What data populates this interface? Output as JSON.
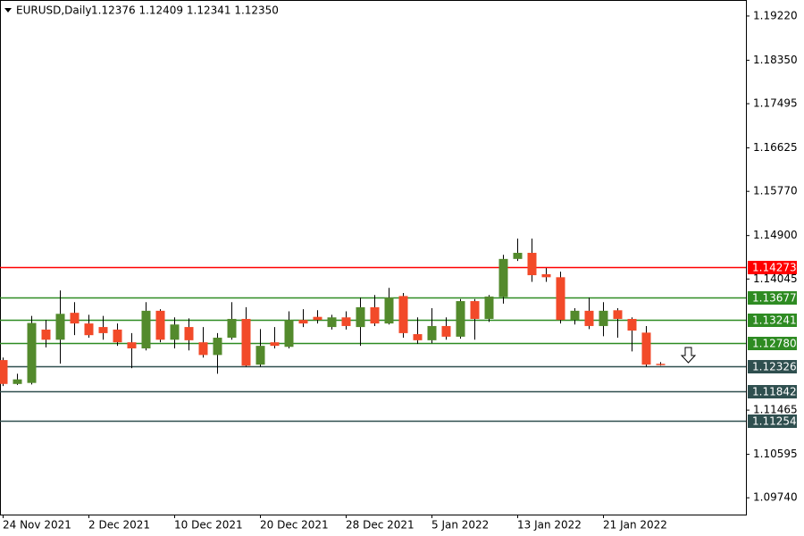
{
  "chart_data": {
    "type": "candlestick",
    "title": "EURUSD,Daily",
    "subtitle": "1.12376 1.12409 1.12341 1.12350",
    "categories": [
      "24 Nov 2021",
      null,
      null,
      null,
      null,
      null,
      "2 Dec 2021",
      null,
      null,
      null,
      null,
      null,
      "10 Dec 2021",
      null,
      null,
      null,
      null,
      null,
      "20 Dec 2021",
      null,
      null,
      null,
      null,
      null,
      "28 Dec 2021",
      null,
      null,
      null,
      null,
      null,
      "5 Jan 2022",
      null,
      null,
      null,
      null,
      null,
      "13 Jan 2022",
      null,
      null,
      null,
      null,
      null,
      "21 Jan 2022",
      null,
      null,
      null,
      null
    ],
    "open": [
      1.1245,
      1.1198,
      1.12,
      1.1305,
      1.1285,
      1.1338,
      1.1317,
      1.131,
      1.1305,
      1.128,
      1.1268,
      1.1342,
      1.1285,
      1.131,
      1.128,
      1.1255,
      1.1289,
      1.1326,
      1.1236,
      1.128,
      1.1271,
      1.1324,
      1.133,
      1.131,
      1.1329,
      1.131,
      1.1349,
      1.1317,
      1.1371,
      1.1296,
      1.1284,
      1.1312,
      1.1291,
      1.1361,
      1.1326,
      1.1369,
      1.1444,
      1.1456,
      1.1414,
      1.1408,
      1.1324,
      1.1342,
      1.1312,
      1.1343,
      1.1326,
      1.1299,
      1.12376
    ],
    "high": [
      1.125,
      1.1218,
      1.1332,
      1.1324,
      1.1382,
      1.1359,
      1.1334,
      1.1332,
      1.1317,
      1.1298,
      1.1359,
      1.1345,
      1.1329,
      1.1327,
      1.131,
      1.1298,
      1.1359,
      1.1349,
      1.1306,
      1.131,
      1.1341,
      1.1345,
      1.1343,
      1.1334,
      1.1341,
      1.1368,
      1.1373,
      1.1387,
      1.1377,
      1.1329,
      1.1347,
      1.1329,
      1.1365,
      1.1365,
      1.1373,
      1.1452,
      1.1484,
      1.1484,
      1.1426,
      1.1419,
      1.1347,
      1.1368,
      1.1359,
      1.1347,
      1.1329,
      1.1312,
      1.12409
    ],
    "low": [
      1.1194,
      1.1196,
      1.1197,
      1.127,
      1.1238,
      1.1294,
      1.1289,
      1.1285,
      1.1273,
      1.1229,
      1.1264,
      1.128,
      1.1268,
      1.1264,
      1.125,
      1.1218,
      1.1285,
      1.1232,
      1.1232,
      1.1268,
      1.1268,
      1.131,
      1.1317,
      1.1305,
      1.1305,
      1.1273,
      1.1312,
      1.1315,
      1.1289,
      1.1277,
      1.1278,
      1.1285,
      1.1287,
      1.1285,
      1.132,
      1.1356,
      1.144,
      1.1399,
      1.1399,
      1.1317,
      1.1315,
      1.1306,
      1.1292,
      1.1289,
      1.1262,
      1.1232,
      1.12341
    ],
    "close": [
      1.1198,
      1.1207,
      1.1318,
      1.1285,
      1.1336,
      1.1317,
      1.1294,
      1.1298,
      1.128,
      1.1268,
      1.1342,
      1.1285,
      1.1315,
      1.1284,
      1.1255,
      1.1289,
      1.1326,
      1.1234,
      1.1273,
      1.1273,
      1.1324,
      1.1317,
      1.1324,
      1.1329,
      1.1312,
      1.1349,
      1.1317,
      1.1368,
      1.1298,
      1.1284,
      1.1312,
      1.1291,
      1.1361,
      1.1326,
      1.137,
      1.1444,
      1.1456,
      1.1412,
      1.1408,
      1.1324,
      1.1342,
      1.1312,
      1.1342,
      1.1326,
      1.1303,
      1.1236,
      1.1235
    ],
    "up_color": "#538a2c",
    "down_color": "#f24a29",
    "ylim": [
      1.0941,
      1.195
    ],
    "yticks": [
      {
        "value": 1.0974,
        "label": "1.09740"
      },
      1.10595,
      1.11465,
      1.14045,
      {
        "value": 1.149,
        "label": "1.14900"
      },
      {
        "value": 1.1577,
        "label": "1.15770"
      },
      1.16625,
      1.17495,
      {
        "value": 1.1835,
        "label": "1.18350"
      },
      {
        "value": 1.1922,
        "label": "1.19220"
      }
    ],
    "levels": [
      {
        "value": 1.14273,
        "color": "#ff0000"
      },
      {
        "value": 1.13677,
        "color": "#2e8b22"
      },
      {
        "value": 1.13241,
        "color": "#2e8b22"
      },
      {
        "value": 1.1278,
        "label": "1.12780",
        "color": "#2e8b22"
      },
      {
        "value": 1.12326,
        "color": "#2f4f4f"
      },
      {
        "value": 1.11842,
        "color": "#2f4f4f"
      },
      {
        "value": 1.11254,
        "color": "#2f4f4f"
      }
    ]
  }
}
